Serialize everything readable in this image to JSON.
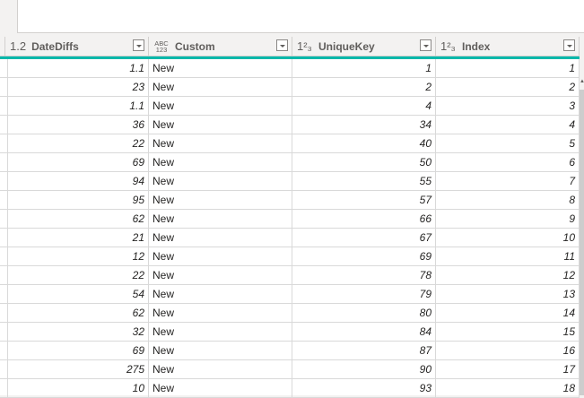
{
  "columns": [
    {
      "type_icon": "1.2",
      "name": "DateDiffs"
    },
    {
      "type_icon": "ABC 123",
      "name": "Custom"
    },
    {
      "type_icon": "1²₃",
      "name": "UniqueKey"
    },
    {
      "type_icon": "1²₃",
      "name": "Index"
    }
  ],
  "rows": [
    {
      "DateDiffs": "1.1",
      "Custom": "New",
      "UniqueKey": "1",
      "Index": "1"
    },
    {
      "DateDiffs": "23",
      "Custom": "New",
      "UniqueKey": "2",
      "Index": "2"
    },
    {
      "DateDiffs": "1.1",
      "Custom": "New",
      "UniqueKey": "4",
      "Index": "3"
    },
    {
      "DateDiffs": "36",
      "Custom": "New",
      "UniqueKey": "34",
      "Index": "4"
    },
    {
      "DateDiffs": "22",
      "Custom": "New",
      "UniqueKey": "40",
      "Index": "5"
    },
    {
      "DateDiffs": "69",
      "Custom": "New",
      "UniqueKey": "50",
      "Index": "6"
    },
    {
      "DateDiffs": "94",
      "Custom": "New",
      "UniqueKey": "55",
      "Index": "7"
    },
    {
      "DateDiffs": "95",
      "Custom": "New",
      "UniqueKey": "57",
      "Index": "8"
    },
    {
      "DateDiffs": "62",
      "Custom": "New",
      "UniqueKey": "66",
      "Index": "9"
    },
    {
      "DateDiffs": "21",
      "Custom": "New",
      "UniqueKey": "67",
      "Index": "10"
    },
    {
      "DateDiffs": "12",
      "Custom": "New",
      "UniqueKey": "69",
      "Index": "11"
    },
    {
      "DateDiffs": "22",
      "Custom": "New",
      "UniqueKey": "78",
      "Index": "12"
    },
    {
      "DateDiffs": "54",
      "Custom": "New",
      "UniqueKey": "79",
      "Index": "13"
    },
    {
      "DateDiffs": "62",
      "Custom": "New",
      "UniqueKey": "80",
      "Index": "14"
    },
    {
      "DateDiffs": "32",
      "Custom": "New",
      "UniqueKey": "84",
      "Index": "15"
    },
    {
      "DateDiffs": "69",
      "Custom": "New",
      "UniqueKey": "87",
      "Index": "16"
    },
    {
      "DateDiffs": "275",
      "Custom": "New",
      "UniqueKey": "90",
      "Index": "17"
    },
    {
      "DateDiffs": "10",
      "Custom": "New",
      "UniqueKey": "93",
      "Index": "18"
    }
  ],
  "colors": {
    "accent": "#01b8aa"
  }
}
